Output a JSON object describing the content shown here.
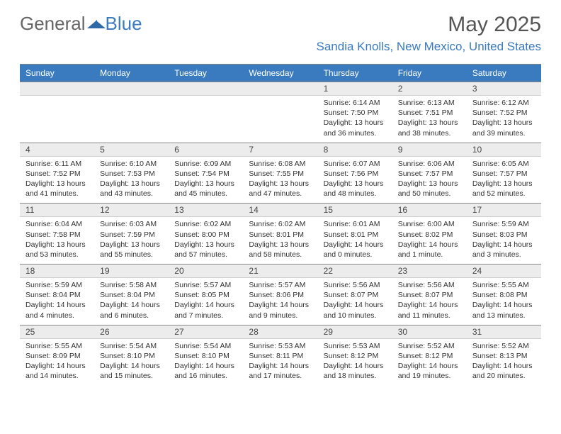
{
  "brand": {
    "word1": "General",
    "word2": "Blue"
  },
  "colors": {
    "accent": "#3a7bbf",
    "header_text": "#ffffff",
    "daynum_bg": "#ececec",
    "border": "#888888",
    "text": "#333333"
  },
  "title": "May 2025",
  "location": "Sandia Knolls, New Mexico, United States",
  "day_labels": [
    "Sunday",
    "Monday",
    "Tuesday",
    "Wednesday",
    "Thursday",
    "Friday",
    "Saturday"
  ],
  "weeks": [
    {
      "nums": [
        "",
        "",
        "",
        "",
        "1",
        "2",
        "3"
      ],
      "details": [
        {},
        {},
        {},
        {},
        {
          "sunrise": "Sunrise: 6:14 AM",
          "sunset": "Sunset: 7:50 PM",
          "day1": "Daylight: 13 hours",
          "day2": "and 36 minutes."
        },
        {
          "sunrise": "Sunrise: 6:13 AM",
          "sunset": "Sunset: 7:51 PM",
          "day1": "Daylight: 13 hours",
          "day2": "and 38 minutes."
        },
        {
          "sunrise": "Sunrise: 6:12 AM",
          "sunset": "Sunset: 7:52 PM",
          "day1": "Daylight: 13 hours",
          "day2": "and 39 minutes."
        }
      ]
    },
    {
      "nums": [
        "4",
        "5",
        "6",
        "7",
        "8",
        "9",
        "10"
      ],
      "details": [
        {
          "sunrise": "Sunrise: 6:11 AM",
          "sunset": "Sunset: 7:52 PM",
          "day1": "Daylight: 13 hours",
          "day2": "and 41 minutes."
        },
        {
          "sunrise": "Sunrise: 6:10 AM",
          "sunset": "Sunset: 7:53 PM",
          "day1": "Daylight: 13 hours",
          "day2": "and 43 minutes."
        },
        {
          "sunrise": "Sunrise: 6:09 AM",
          "sunset": "Sunset: 7:54 PM",
          "day1": "Daylight: 13 hours",
          "day2": "and 45 minutes."
        },
        {
          "sunrise": "Sunrise: 6:08 AM",
          "sunset": "Sunset: 7:55 PM",
          "day1": "Daylight: 13 hours",
          "day2": "and 47 minutes."
        },
        {
          "sunrise": "Sunrise: 6:07 AM",
          "sunset": "Sunset: 7:56 PM",
          "day1": "Daylight: 13 hours",
          "day2": "and 48 minutes."
        },
        {
          "sunrise": "Sunrise: 6:06 AM",
          "sunset": "Sunset: 7:57 PM",
          "day1": "Daylight: 13 hours",
          "day2": "and 50 minutes."
        },
        {
          "sunrise": "Sunrise: 6:05 AM",
          "sunset": "Sunset: 7:57 PM",
          "day1": "Daylight: 13 hours",
          "day2": "and 52 minutes."
        }
      ]
    },
    {
      "nums": [
        "11",
        "12",
        "13",
        "14",
        "15",
        "16",
        "17"
      ],
      "details": [
        {
          "sunrise": "Sunrise: 6:04 AM",
          "sunset": "Sunset: 7:58 PM",
          "day1": "Daylight: 13 hours",
          "day2": "and 53 minutes."
        },
        {
          "sunrise": "Sunrise: 6:03 AM",
          "sunset": "Sunset: 7:59 PM",
          "day1": "Daylight: 13 hours",
          "day2": "and 55 minutes."
        },
        {
          "sunrise": "Sunrise: 6:02 AM",
          "sunset": "Sunset: 8:00 PM",
          "day1": "Daylight: 13 hours",
          "day2": "and 57 minutes."
        },
        {
          "sunrise": "Sunrise: 6:02 AM",
          "sunset": "Sunset: 8:01 PM",
          "day1": "Daylight: 13 hours",
          "day2": "and 58 minutes."
        },
        {
          "sunrise": "Sunrise: 6:01 AM",
          "sunset": "Sunset: 8:01 PM",
          "day1": "Daylight: 14 hours",
          "day2": "and 0 minutes."
        },
        {
          "sunrise": "Sunrise: 6:00 AM",
          "sunset": "Sunset: 8:02 PM",
          "day1": "Daylight: 14 hours",
          "day2": "and 1 minute."
        },
        {
          "sunrise": "Sunrise: 5:59 AM",
          "sunset": "Sunset: 8:03 PM",
          "day1": "Daylight: 14 hours",
          "day2": "and 3 minutes."
        }
      ]
    },
    {
      "nums": [
        "18",
        "19",
        "20",
        "21",
        "22",
        "23",
        "24"
      ],
      "details": [
        {
          "sunrise": "Sunrise: 5:59 AM",
          "sunset": "Sunset: 8:04 PM",
          "day1": "Daylight: 14 hours",
          "day2": "and 4 minutes."
        },
        {
          "sunrise": "Sunrise: 5:58 AM",
          "sunset": "Sunset: 8:04 PM",
          "day1": "Daylight: 14 hours",
          "day2": "and 6 minutes."
        },
        {
          "sunrise": "Sunrise: 5:57 AM",
          "sunset": "Sunset: 8:05 PM",
          "day1": "Daylight: 14 hours",
          "day2": "and 7 minutes."
        },
        {
          "sunrise": "Sunrise: 5:57 AM",
          "sunset": "Sunset: 8:06 PM",
          "day1": "Daylight: 14 hours",
          "day2": "and 9 minutes."
        },
        {
          "sunrise": "Sunrise: 5:56 AM",
          "sunset": "Sunset: 8:07 PM",
          "day1": "Daylight: 14 hours",
          "day2": "and 10 minutes."
        },
        {
          "sunrise": "Sunrise: 5:56 AM",
          "sunset": "Sunset: 8:07 PM",
          "day1": "Daylight: 14 hours",
          "day2": "and 11 minutes."
        },
        {
          "sunrise": "Sunrise: 5:55 AM",
          "sunset": "Sunset: 8:08 PM",
          "day1": "Daylight: 14 hours",
          "day2": "and 13 minutes."
        }
      ]
    },
    {
      "nums": [
        "25",
        "26",
        "27",
        "28",
        "29",
        "30",
        "31"
      ],
      "details": [
        {
          "sunrise": "Sunrise: 5:55 AM",
          "sunset": "Sunset: 8:09 PM",
          "day1": "Daylight: 14 hours",
          "day2": "and 14 minutes."
        },
        {
          "sunrise": "Sunrise: 5:54 AM",
          "sunset": "Sunset: 8:10 PM",
          "day1": "Daylight: 14 hours",
          "day2": "and 15 minutes."
        },
        {
          "sunrise": "Sunrise: 5:54 AM",
          "sunset": "Sunset: 8:10 PM",
          "day1": "Daylight: 14 hours",
          "day2": "and 16 minutes."
        },
        {
          "sunrise": "Sunrise: 5:53 AM",
          "sunset": "Sunset: 8:11 PM",
          "day1": "Daylight: 14 hours",
          "day2": "and 17 minutes."
        },
        {
          "sunrise": "Sunrise: 5:53 AM",
          "sunset": "Sunset: 8:12 PM",
          "day1": "Daylight: 14 hours",
          "day2": "and 18 minutes."
        },
        {
          "sunrise": "Sunrise: 5:52 AM",
          "sunset": "Sunset: 8:12 PM",
          "day1": "Daylight: 14 hours",
          "day2": "and 19 minutes."
        },
        {
          "sunrise": "Sunrise: 5:52 AM",
          "sunset": "Sunset: 8:13 PM",
          "day1": "Daylight: 14 hours",
          "day2": "and 20 minutes."
        }
      ]
    }
  ]
}
